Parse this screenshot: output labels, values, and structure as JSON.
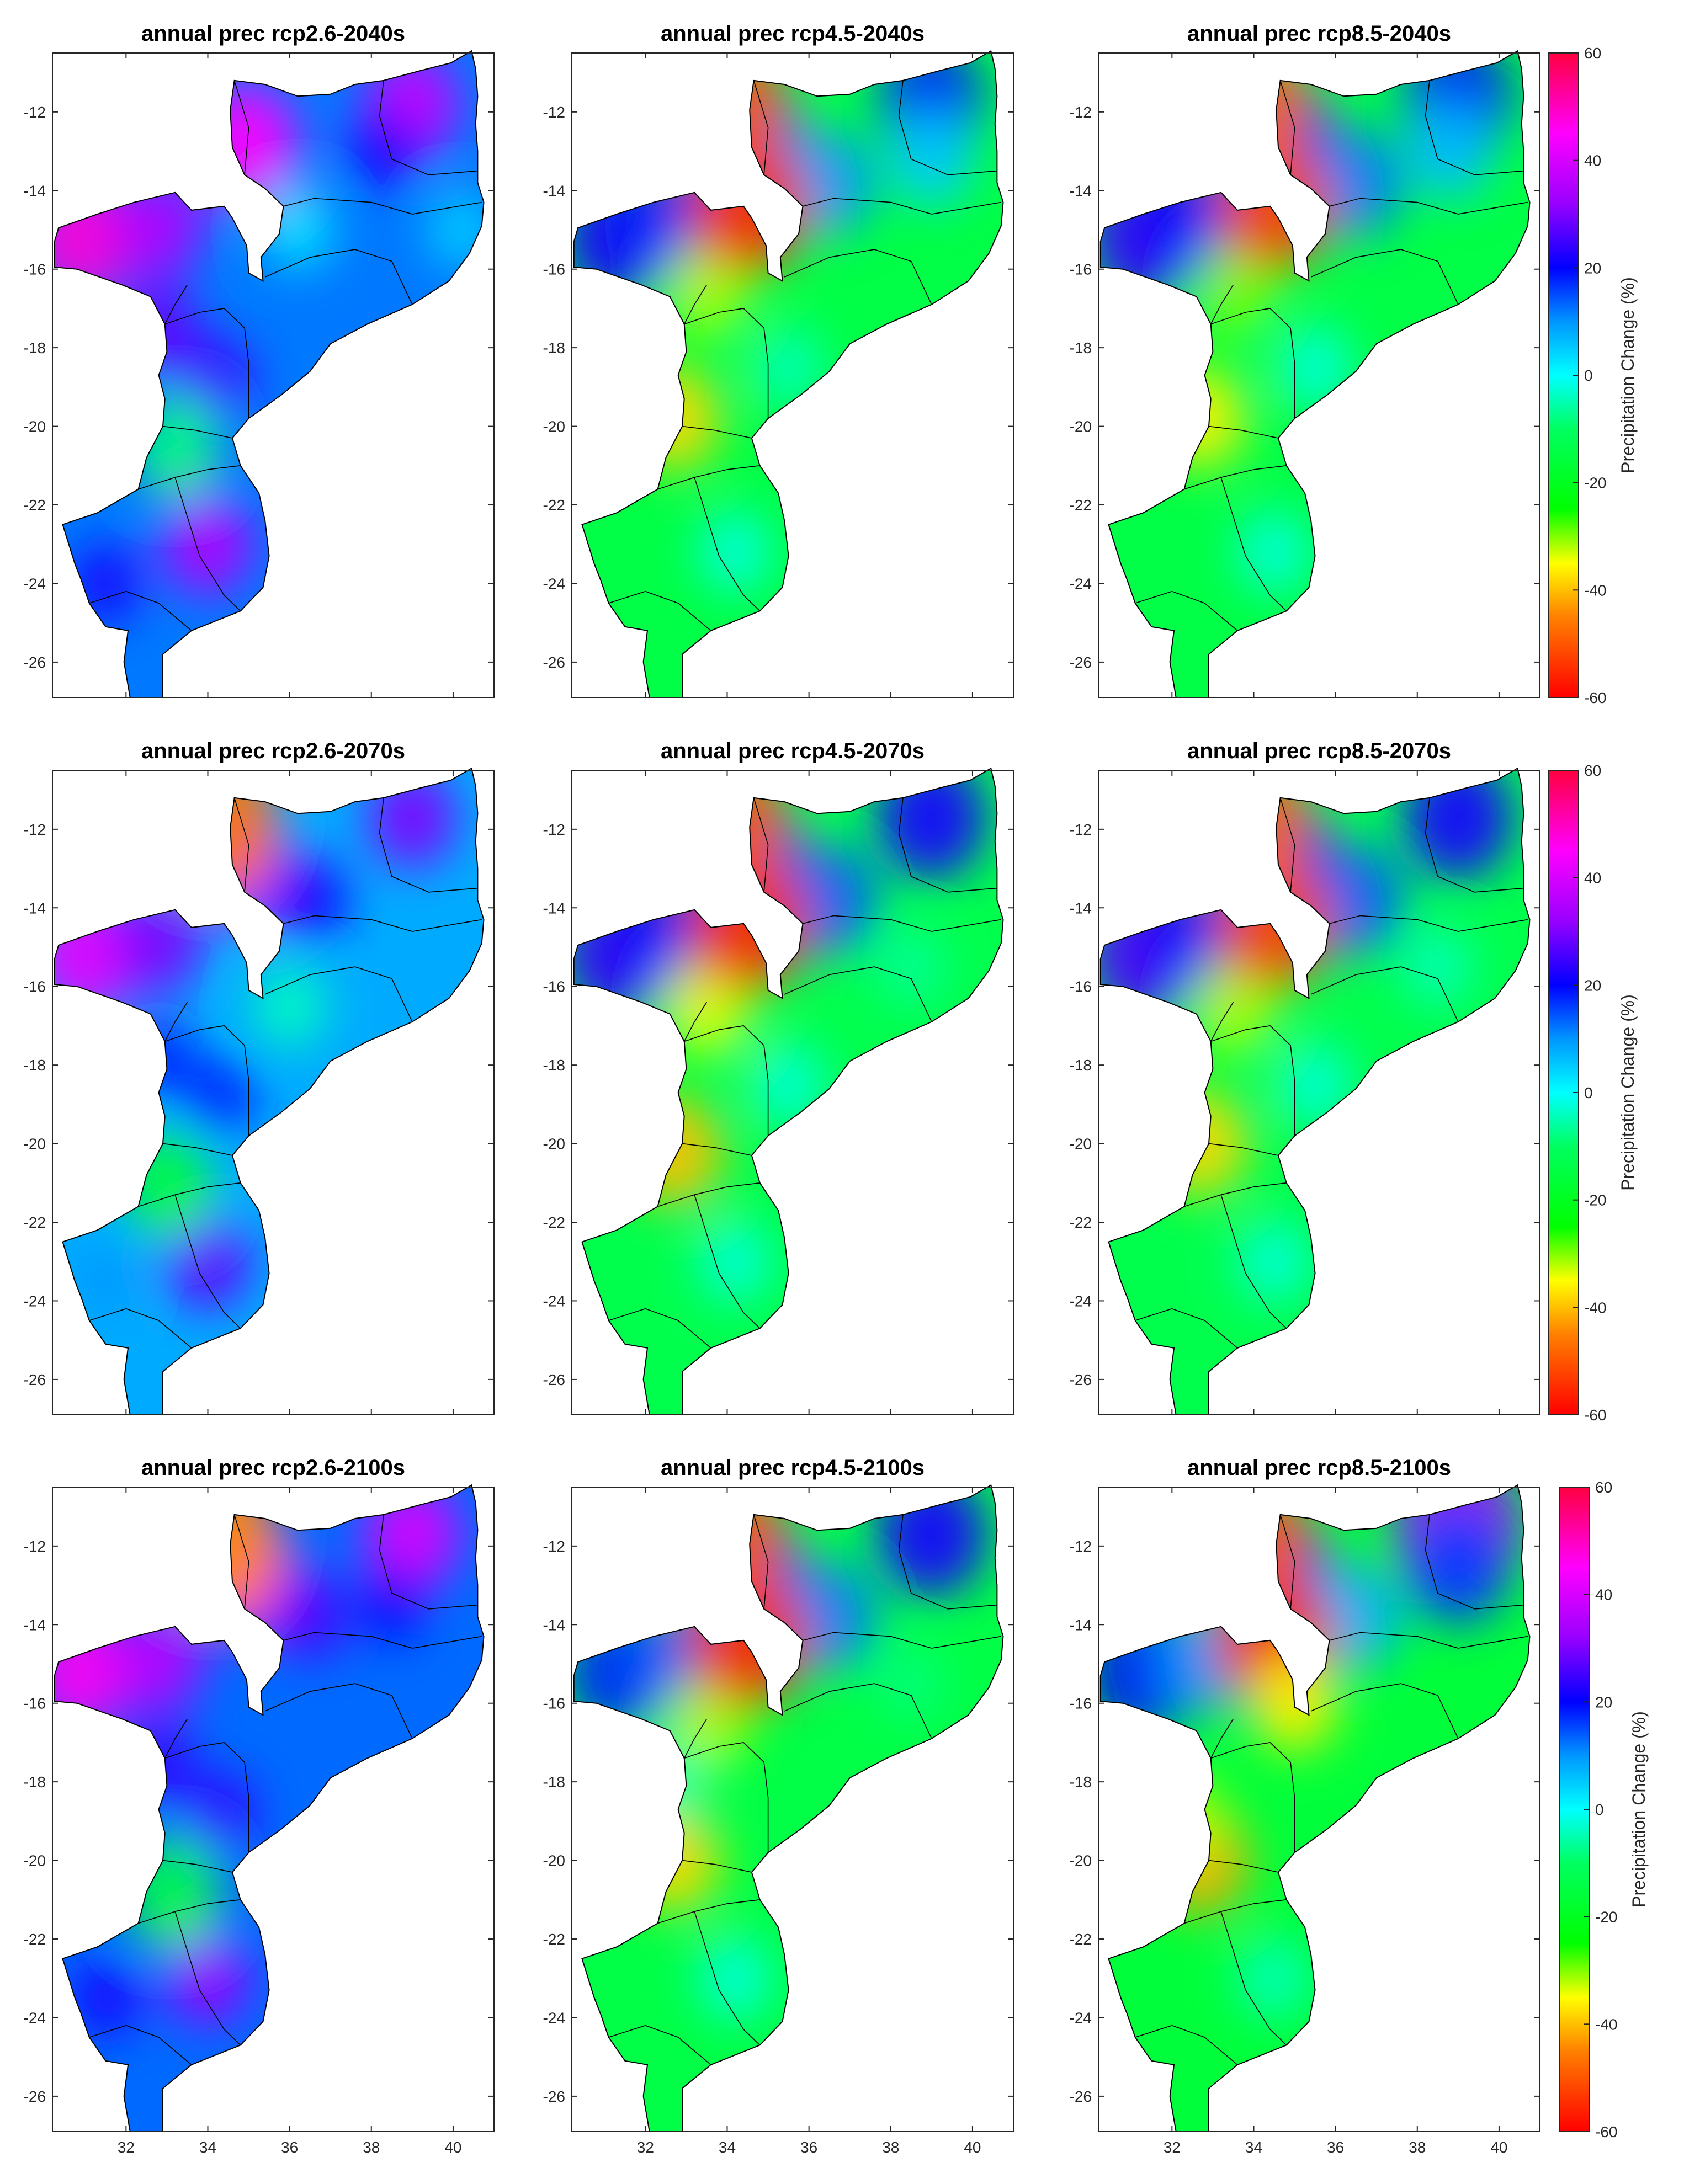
{
  "chart_data": {
    "type": "heatmap",
    "layout": "3x3 small multiples",
    "region": "Mozambique",
    "xlim": [
      30.2,
      41.0
    ],
    "ylim": [
      -26.9,
      -10.5
    ],
    "xticks": [
      32,
      34,
      36,
      38,
      40
    ],
    "yticks": [
      -12,
      -14,
      -16,
      -18,
      -20,
      -22,
      -24,
      -26
    ],
    "colorbar": {
      "label": "Precipitation Change (%)",
      "range": [
        -60,
        60
      ],
      "ticks": [
        60,
        40,
        20,
        0,
        -20,
        -40,
        -60
      ],
      "colors": [
        {
          "value": -60,
          "color": "#ff0000"
        },
        {
          "value": -45,
          "color": "#ff8000"
        },
        {
          "value": -35,
          "color": "#ffff00"
        },
        {
          "value": -25,
          "color": "#00ff00"
        },
        {
          "value": -10,
          "color": "#00ff60"
        },
        {
          "value": 0,
          "color": "#00ffff"
        },
        {
          "value": 10,
          "color": "#0096ff"
        },
        {
          "value": 20,
          "color": "#0000ff"
        },
        {
          "value": 32,
          "color": "#9900ff"
        },
        {
          "value": 45,
          "color": "#ff00ff"
        },
        {
          "value": 60,
          "color": "#ff0040"
        }
      ]
    },
    "panels": [
      {
        "title": "annual prec rcp2.6-2040s",
        "base_change": 12,
        "blobs": [
          {
            "lon": 34.0,
            "lat": -23.0,
            "value": 35
          },
          {
            "lon": 31.5,
            "lat": -24.0,
            "value": 22
          },
          {
            "lon": 30.9,
            "lat": -15.2,
            "value": 48
          },
          {
            "lon": 32.8,
            "lat": -14.9,
            "value": 35
          },
          {
            "lon": 34.9,
            "lat": -12.8,
            "value": 45
          },
          {
            "lon": 39.0,
            "lat": -11.8,
            "value": 38
          },
          {
            "lon": 38.3,
            "lat": -13.0,
            "value": 22
          },
          {
            "lon": 32.8,
            "lat": -17.5,
            "value": 28
          },
          {
            "lon": 34.2,
            "lat": -18.8,
            "value": 25
          },
          {
            "lon": 33.2,
            "lat": -20.5,
            "value": -8
          },
          {
            "lon": 40.2,
            "lat": -15.0,
            "value": 4
          },
          {
            "lon": 36.2,
            "lat": -15.0,
            "value": 2
          }
        ]
      },
      {
        "title": "annual prec rcp4.5-2040s",
        "base_change": -14,
        "blobs": [
          {
            "lon": 31.3,
            "lat": -15.2,
            "value": 22
          },
          {
            "lon": 32.8,
            "lat": -14.9,
            "value": 18
          },
          {
            "lon": 34.8,
            "lat": -12.8,
            "value": 14
          },
          {
            "lon": 39.0,
            "lat": -11.7,
            "value": 18
          },
          {
            "lon": 39.0,
            "lat": -13.2,
            "value": 5
          },
          {
            "lon": 36.5,
            "lat": -13.8,
            "value": 10
          },
          {
            "lon": 34.2,
            "lat": -23.2,
            "value": -2
          },
          {
            "lon": 32.7,
            "lat": -19.8,
            "value": -38
          },
          {
            "lon": 33.5,
            "lat": -16.5,
            "value": -32
          },
          {
            "lon": 34.5,
            "lat": -14.4,
            "value": -55
          },
          {
            "lon": 34.1,
            "lat": -11.8,
            "value": -50
          },
          {
            "lon": 35.5,
            "lat": -18.5,
            "value": -4
          }
        ]
      },
      {
        "title": "annual prec rcp8.5-2040s",
        "base_change": -14,
        "blobs": [
          {
            "lon": 31.3,
            "lat": -15.2,
            "value": 24
          },
          {
            "lon": 32.8,
            "lat": -14.9,
            "value": 20
          },
          {
            "lon": 34.8,
            "lat": -12.8,
            "value": 20
          },
          {
            "lon": 39.0,
            "lat": -11.7,
            "value": 20
          },
          {
            "lon": 38.8,
            "lat": -13.0,
            "value": 6
          },
          {
            "lon": 36.5,
            "lat": -13.8,
            "value": 12
          },
          {
            "lon": 34.5,
            "lat": -23.2,
            "value": -2
          },
          {
            "lon": 32.7,
            "lat": -19.8,
            "value": -36
          },
          {
            "lon": 33.5,
            "lat": -16.5,
            "value": -30
          },
          {
            "lon": 34.5,
            "lat": -14.4,
            "value": -52
          },
          {
            "lon": 34.1,
            "lat": -11.8,
            "value": -48
          },
          {
            "lon": 35.5,
            "lat": -18.5,
            "value": -2
          }
        ]
      },
      {
        "title": "annual prec rcp2.6-2070s",
        "base_change": 8,
        "blobs": [
          {
            "lon": 34.0,
            "lat": -23.0,
            "value": 28
          },
          {
            "lon": 31.5,
            "lat": -23.5,
            "value": 10
          },
          {
            "lon": 31.0,
            "lat": -15.2,
            "value": 42
          },
          {
            "lon": 32.8,
            "lat": -14.9,
            "value": 30
          },
          {
            "lon": 34.9,
            "lat": -13.0,
            "value": 38
          },
          {
            "lon": 39.0,
            "lat": -11.7,
            "value": 30
          },
          {
            "lon": 36.5,
            "lat": -13.8,
            "value": 22
          },
          {
            "lon": 32.8,
            "lat": -17.8,
            "value": 18
          },
          {
            "lon": 34.3,
            "lat": -18.8,
            "value": 18
          },
          {
            "lon": 33.0,
            "lat": -21.0,
            "value": -16
          },
          {
            "lon": 34.1,
            "lat": -11.8,
            "value": -46
          },
          {
            "lon": 36.0,
            "lat": -16.5,
            "value": -4
          }
        ]
      },
      {
        "title": "annual prec rcp4.5-2070s",
        "base_change": -13,
        "blobs": [
          {
            "lon": 31.3,
            "lat": -15.2,
            "value": 24
          },
          {
            "lon": 32.8,
            "lat": -14.9,
            "value": 20
          },
          {
            "lon": 34.8,
            "lat": -12.8,
            "value": 16
          },
          {
            "lon": 39.0,
            "lat": -11.7,
            "value": 22
          },
          {
            "lon": 36.5,
            "lat": -13.8,
            "value": 14
          },
          {
            "lon": 34.2,
            "lat": -23.0,
            "value": -2
          },
          {
            "lon": 32.7,
            "lat": -20.2,
            "value": -40
          },
          {
            "lon": 33.5,
            "lat": -16.5,
            "value": -34
          },
          {
            "lon": 34.5,
            "lat": -14.4,
            "value": -55
          },
          {
            "lon": 34.1,
            "lat": -11.8,
            "value": -50
          },
          {
            "lon": 35.5,
            "lat": -18.5,
            "value": -2
          },
          {
            "lon": 38.5,
            "lat": -15.5,
            "value": -6
          }
        ]
      },
      {
        "title": "annual prec rcp8.5-2070s",
        "base_change": -13,
        "blobs": [
          {
            "lon": 31.3,
            "lat": -15.2,
            "value": 26
          },
          {
            "lon": 32.8,
            "lat": -14.9,
            "value": 20
          },
          {
            "lon": 34.8,
            "lat": -12.8,
            "value": 20
          },
          {
            "lon": 39.0,
            "lat": -11.7,
            "value": 22
          },
          {
            "lon": 36.5,
            "lat": -13.8,
            "value": 14
          },
          {
            "lon": 34.5,
            "lat": -23.0,
            "value": -2
          },
          {
            "lon": 32.7,
            "lat": -20.0,
            "value": -38
          },
          {
            "lon": 33.5,
            "lat": -16.5,
            "value": -32
          },
          {
            "lon": 34.5,
            "lat": -14.4,
            "value": -52
          },
          {
            "lon": 34.1,
            "lat": -11.8,
            "value": -48
          },
          {
            "lon": 35.5,
            "lat": -18.5,
            "value": -2
          },
          {
            "lon": 38.5,
            "lat": -15.5,
            "value": -4
          }
        ]
      },
      {
        "title": "annual prec rcp2.6-2100s",
        "base_change": 13,
        "blobs": [
          {
            "lon": 34.0,
            "lat": -23.0,
            "value": 32
          },
          {
            "lon": 31.5,
            "lat": -23.5,
            "value": 22
          },
          {
            "lon": 30.9,
            "lat": -15.2,
            "value": 46
          },
          {
            "lon": 32.8,
            "lat": -14.9,
            "value": 36
          },
          {
            "lon": 34.9,
            "lat": -12.8,
            "value": 48
          },
          {
            "lon": 39.0,
            "lat": -11.7,
            "value": 40
          },
          {
            "lon": 38.5,
            "lat": -13.5,
            "value": 20
          },
          {
            "lon": 32.8,
            "lat": -17.5,
            "value": 24
          },
          {
            "lon": 34.3,
            "lat": -18.8,
            "value": 24
          },
          {
            "lon": 33.1,
            "lat": -20.8,
            "value": -14
          },
          {
            "lon": 34.1,
            "lat": -11.8,
            "value": -44
          },
          {
            "lon": 36.5,
            "lat": -13.8,
            "value": 26
          }
        ]
      },
      {
        "title": "annual prec rcp4.5-2100s",
        "base_change": -14,
        "blobs": [
          {
            "lon": 31.3,
            "lat": -15.2,
            "value": 18
          },
          {
            "lon": 32.8,
            "lat": -14.9,
            "value": 14
          },
          {
            "lon": 34.8,
            "lat": -12.8,
            "value": 16
          },
          {
            "lon": 39.0,
            "lat": -11.7,
            "value": 22
          },
          {
            "lon": 36.5,
            "lat": -13.8,
            "value": 12
          },
          {
            "lon": 34.2,
            "lat": -23.0,
            "value": -2
          },
          {
            "lon": 32.7,
            "lat": -20.0,
            "value": -38
          },
          {
            "lon": 33.5,
            "lat": -16.5,
            "value": -32
          },
          {
            "lon": 34.5,
            "lat": -14.4,
            "value": -55
          },
          {
            "lon": 34.1,
            "lat": -11.8,
            "value": -50
          },
          {
            "lon": 32.5,
            "lat": -18.0,
            "value": -4
          },
          {
            "lon": 38.5,
            "lat": -15.5,
            "value": -8
          }
        ]
      },
      {
        "title": "annual prec rcp8.5-2100s",
        "base_change": -16,
        "blobs": [
          {
            "lon": 31.3,
            "lat": -15.2,
            "value": 20
          },
          {
            "lon": 32.8,
            "lat": -14.9,
            "value": 10
          },
          {
            "lon": 34.8,
            "lat": -12.8,
            "value": 16
          },
          {
            "lon": 39.0,
            "lat": -11.5,
            "value": 32
          },
          {
            "lon": 39.0,
            "lat": -12.5,
            "value": 16
          },
          {
            "lon": 36.5,
            "lat": -13.8,
            "value": 8
          },
          {
            "lon": 34.5,
            "lat": -23.0,
            "value": -4
          },
          {
            "lon": 32.7,
            "lat": -20.0,
            "value": -42
          },
          {
            "lon": 32.3,
            "lat": -19.0,
            "value": -32
          },
          {
            "lon": 34.5,
            "lat": -14.4,
            "value": -56
          },
          {
            "lon": 34.1,
            "lat": -11.8,
            "value": -50
          },
          {
            "lon": 35.0,
            "lat": -16.0,
            "value": -36
          }
        ]
      }
    ]
  }
}
